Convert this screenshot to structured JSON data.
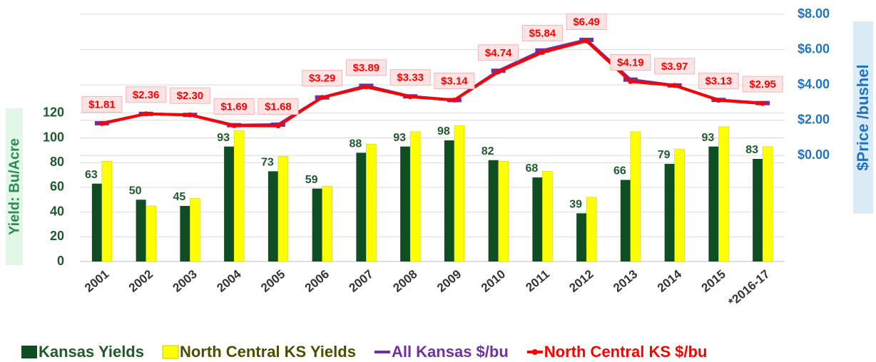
{
  "chart_data": {
    "type": "bar",
    "categories": [
      "2001",
      "2002",
      "2003",
      "2004",
      "2005",
      "2006",
      "2007",
      "2008",
      "2009",
      "2010",
      "2011",
      "2012",
      "2013",
      "2014",
      "2015",
      "*2016-17"
    ],
    "series": [
      {
        "name": "Kansas Yields",
        "type": "bar",
        "color": "#0f4d23",
        "values": [
          63,
          50,
          45,
          93,
          73,
          59,
          88,
          93,
          98,
          82,
          68,
          39,
          66,
          79,
          93,
          83
        ]
      },
      {
        "name": "North Central KS Yields",
        "type": "bar",
        "color": "#ffff00",
        "values": [
          81,
          45,
          51,
          106,
          85,
          61,
          95,
          105,
          110,
          81,
          73,
          52,
          105,
          91,
          109,
          93
        ]
      },
      {
        "name": "All Kansas $/bu",
        "type": "line",
        "axis": "y2",
        "color": "#7030a0",
        "values": [
          1.83,
          2.36,
          2.3,
          1.72,
          1.75,
          3.29,
          3.95,
          3.35,
          3.14,
          4.8,
          5.95,
          6.55,
          4.3,
          3.97,
          3.15,
          2.97
        ]
      },
      {
        "name": "North Central KS $/bu",
        "type": "line",
        "axis": "y2",
        "color": "#ff0000",
        "values": [
          1.81,
          2.36,
          2.3,
          1.69,
          1.68,
          3.29,
          3.89,
          3.33,
          3.14,
          4.74,
          5.84,
          6.49,
          4.19,
          3.97,
          3.13,
          2.95
        ],
        "value_labels": [
          "$1.81",
          "$2.36",
          "$2.30",
          "$1.69",
          "$1.68",
          "$3.29",
          "$3.89",
          "$3.33",
          "$3.14",
          "$4.74",
          "$5.84",
          "$6.49",
          "$4.19",
          "$3.97",
          "$3.13",
          "$2.95"
        ]
      }
    ],
    "y_label": "Yield: Bu/Acre",
    "y2_label": "$Price /bushel",
    "ylim": [
      0,
      200
    ],
    "yticks": [
      0,
      20,
      40,
      60,
      80,
      100,
      120
    ],
    "y2lim": [
      -6,
      8
    ],
    "y2ticks": [
      {
        "value": 0,
        "label": "$0.00"
      },
      {
        "value": 2,
        "label": "$2.00"
      },
      {
        "value": 4,
        "label": "$4.00"
      },
      {
        "value": 6,
        "label": "$6.00"
      },
      {
        "value": 8,
        "label": "$8.00"
      }
    ],
    "grid": true,
    "legend": "bottom"
  }
}
